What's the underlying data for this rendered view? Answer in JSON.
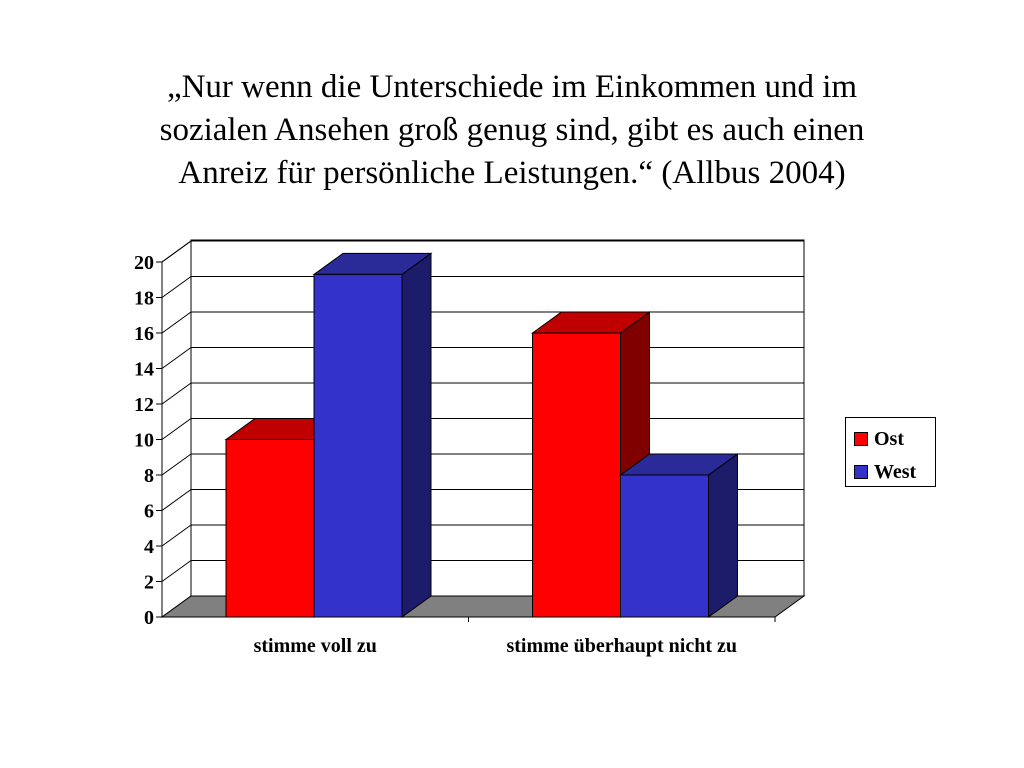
{
  "title": {
    "line1": "„Nur wenn die Unterschiede im Einkommen und im",
    "line2": "sozialen Ansehen groß genug sind, gibt es auch einen",
    "line3": "Anreiz für persönliche Leistungen.“ (Allbus 2004)"
  },
  "colors": {
    "Ost": "#ff0000",
    "Ost_side": "#800000",
    "Ost_top": "#c00000",
    "West": "#3333cc",
    "West_side": "#1c1c6b",
    "West_top": "#2a2a99",
    "floor": "#808080"
  },
  "chart_data": {
    "type": "bar",
    "style": "3d-clustered",
    "title": "„Nur wenn die Unterschiede im Einkommen und im sozialen Ansehen groß genug sind, gibt es auch einen Anreiz für persönliche Leistungen.“ (Allbus 2004)",
    "categories": [
      "stimme voll zu",
      "stimme überhaupt nicht zu"
    ],
    "series": [
      {
        "name": "Ost",
        "values": [
          10,
          16
        ]
      },
      {
        "name": "West",
        "values": [
          19.3,
          8
        ]
      }
    ],
    "ylim": [
      0,
      20
    ],
    "yticks": [
      0,
      2,
      4,
      6,
      8,
      10,
      12,
      14,
      16,
      18,
      20
    ],
    "grid": true,
    "legend_position": "right"
  },
  "legend": {
    "items": [
      "Ost",
      "West"
    ]
  }
}
